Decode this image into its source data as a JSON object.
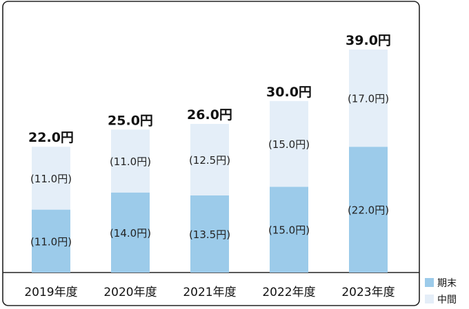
{
  "chart_data": {
    "type": "bar",
    "stacked": true,
    "categories": [
      "2019年度",
      "2020年度",
      "2021年度",
      "2022年度",
      "2023年度"
    ],
    "series": [
      {
        "name": "期末",
        "values": [
          11.0,
          14.0,
          13.5,
          15.0,
          22.0
        ],
        "labels": [
          "(11.0円)",
          "(14.0円)",
          "(13.5円)",
          "(15.0円)",
          "(22.0円)"
        ]
      },
      {
        "name": "中間",
        "values": [
          11.0,
          11.0,
          12.5,
          15.0,
          17.0
        ],
        "labels": [
          "(11.0円)",
          "(11.0円)",
          "(12.5円)",
          "(15.0円)",
          "(17.0円)"
        ]
      }
    ],
    "totals": [
      "22.0円",
      "25.0円",
      "26.0円",
      "30.0円",
      "39.0円"
    ],
    "ylim": [
      0,
      39
    ],
    "grid": false,
    "legend": "bottom-right"
  },
  "colors": {
    "期末": "#9ccbea",
    "中間": "#e4eef8",
    "frame": "#222222"
  }
}
